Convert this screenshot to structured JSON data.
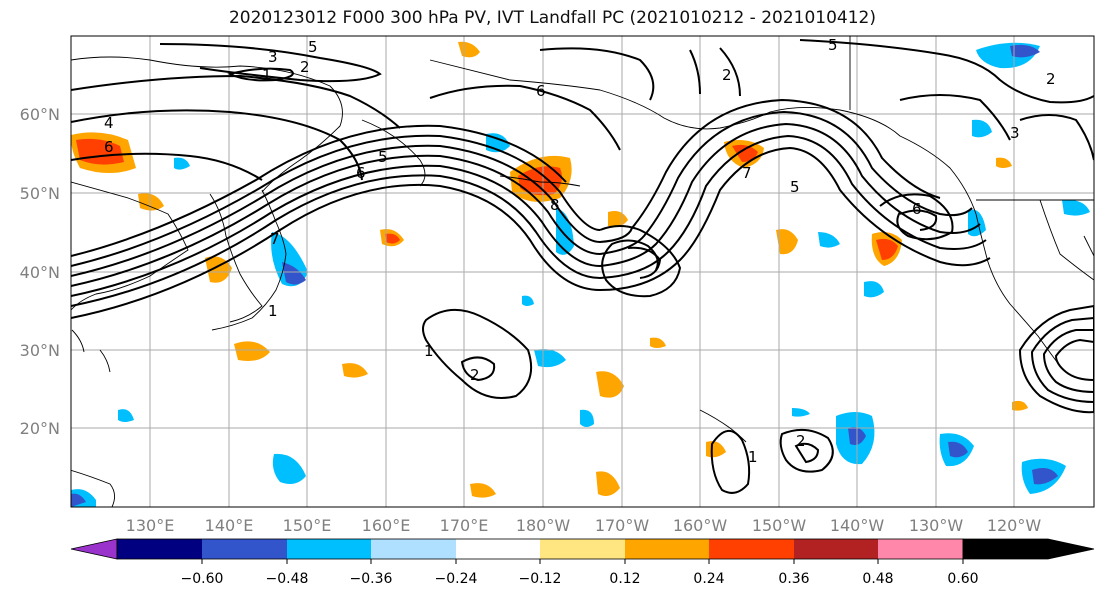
{
  "title": "2020123012 F000 300 hPa PV, IVT Landfall PC (2021010212 - 2021010412)",
  "map": {
    "lat_ticks": [
      "60°N",
      "50°N",
      "40°N",
      "30°N",
      "20°N"
    ],
    "lon_ticks": [
      "130°E",
      "140°E",
      "150°E",
      "160°E",
      "170°E",
      "180°W",
      "170°W",
      "160°W",
      "150°W",
      "140°W",
      "130°W",
      "120°W"
    ],
    "contour_labels": [
      "3",
      "5",
      "1",
      "2",
      "6",
      "4",
      "6",
      "5",
      "6",
      "8",
      "7",
      "5",
      "2",
      "6",
      "1",
      "1",
      "2",
      "5",
      "2",
      "3",
      "1",
      "2",
      "7"
    ],
    "colors": {
      "land_outline": "#000000",
      "grid": "#aaaaaa",
      "contour": "#000000"
    }
  },
  "colorbar": {
    "ticks": [
      "−0.60",
      "−0.48",
      "−0.36",
      "−0.24",
      "−0.12",
      "0.12",
      "0.24",
      "0.36",
      "0.48",
      "0.60"
    ],
    "colors": [
      "#9933cc",
      "#000080",
      "#3355cc",
      "#00bfff",
      "#b0e0ff",
      "#ffffff",
      "#ffe680",
      "#ffa500",
      "#ff4000",
      "#b22222",
      "#ff88aa"
    ]
  }
}
